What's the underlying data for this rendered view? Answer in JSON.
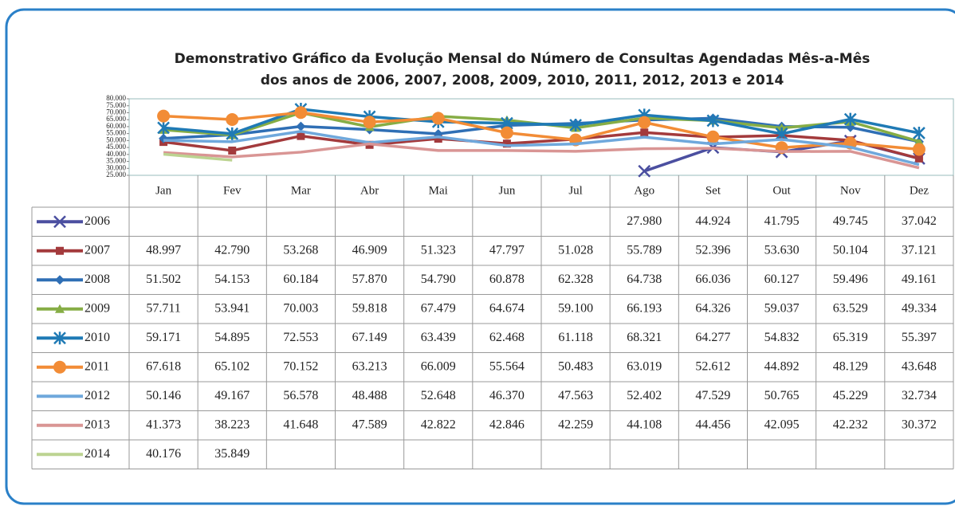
{
  "chart_data": {
    "type": "line",
    "title": "Demonstrativo Gráfico da Evolução Mensal do Número de Consultas Agendadas Mês-a-Mês",
    "subtitle": "dos anos de 2006, 2007, 2008, 2009, 2010, 2011, 2012, 2013 e 2014",
    "categories": [
      "Jan",
      "Fev",
      "Mar",
      "Abr",
      "Mai",
      "Jun",
      "Jul",
      "Ago",
      "Set",
      "Out",
      "Nov",
      "Dez"
    ],
    "ylim": [
      25000,
      80000
    ],
    "yticks": [
      {
        "value": 25000,
        "label": "25.000"
      },
      {
        "value": 30000,
        "label": "30.000"
      },
      {
        "value": 35000,
        "label": "35.000"
      },
      {
        "value": 40000,
        "label": "40.000"
      },
      {
        "value": 45000,
        "label": "45.000"
      },
      {
        "value": 50000,
        "label": "50.000"
      },
      {
        "value": 55000,
        "label": "55.000"
      },
      {
        "value": 60000,
        "label": "60.000"
      },
      {
        "value": 65000,
        "label": "65.000"
      },
      {
        "value": 70000,
        "label": "70.000"
      },
      {
        "value": 75000,
        "label": "75.000"
      },
      {
        "value": 80000,
        "label": "80.000"
      }
    ],
    "series": [
      {
        "name": "2006",
        "color": "#4b4fa0",
        "marker": "x",
        "values": [
          null,
          null,
          null,
          null,
          null,
          null,
          null,
          27980,
          44924,
          41795,
          49745,
          37042
        ],
        "value_labels": [
          null,
          null,
          null,
          null,
          null,
          null,
          null,
          "27.980",
          "44.924",
          "41.795",
          "49.745",
          "37.042"
        ]
      },
      {
        "name": "2007",
        "color": "#a33a3c",
        "marker": "square",
        "values": [
          48997,
          42790,
          53268,
          46909,
          51323,
          47797,
          51028,
          55789,
          52396,
          53630,
          50104,
          37121
        ],
        "value_labels": [
          "48.997",
          "42.790",
          "53.268",
          "46.909",
          "51.323",
          "47.797",
          "51.028",
          "55.789",
          "52.396",
          "53.630",
          "50.104",
          "37.121"
        ]
      },
      {
        "name": "2008",
        "color": "#2f6fb5",
        "marker": "diamond",
        "values": [
          51502,
          54153,
          60184,
          57870,
          54790,
          60878,
          62328,
          64738,
          66036,
          60127,
          59496,
          49161
        ],
        "value_labels": [
          "51.502",
          "54.153",
          "60.184",
          "57.870",
          "54.790",
          "60.878",
          "62.328",
          "64.738",
          "66.036",
          "60.127",
          "59.496",
          "49.161"
        ]
      },
      {
        "name": "2009",
        "color": "#86ad45",
        "marker": "triangle",
        "values": [
          57711,
          53941,
          70003,
          59818,
          67479,
          64674,
          59100,
          66193,
          64326,
          59037,
          63529,
          49334
        ],
        "value_labels": [
          "57.711",
          "53.941",
          "70.003",
          "59.818",
          "67.479",
          "64.674",
          "59.100",
          "66.193",
          "64.326",
          "59.037",
          "63.529",
          "49.334"
        ]
      },
      {
        "name": "2010",
        "color": "#1f7ab5",
        "marker": "star",
        "values": [
          59171,
          54895,
          72553,
          67149,
          63439,
          62468,
          61118,
          68321,
          64277,
          54832,
          65319,
          55397
        ],
        "value_labels": [
          "59.171",
          "54.895",
          "72.553",
          "67.149",
          "63.439",
          "62.468",
          "61.118",
          "68.321",
          "64.277",
          "54.832",
          "65.319",
          "55.397"
        ]
      },
      {
        "name": "2011",
        "color": "#f28c36",
        "marker": "circle",
        "values": [
          67618,
          65102,
          70152,
          63213,
          66009,
          55564,
          50483,
          63019,
          52612,
          44892,
          48129,
          43648
        ],
        "value_labels": [
          "67.618",
          "65.102",
          "70.152",
          "63.213",
          "66.009",
          "55.564",
          "50.483",
          "63.019",
          "52.612",
          "44.892",
          "48.129",
          "43.648"
        ]
      },
      {
        "name": "2012",
        "color": "#6fa8dc",
        "marker": "none",
        "values": [
          50146,
          49167,
          56578,
          48488,
          52648,
          46370,
          47563,
          52402,
          47529,
          50765,
          45229,
          32734
        ],
        "value_labels": [
          "50.146",
          "49.167",
          "56.578",
          "48.488",
          "52.648",
          "46.370",
          "47.563",
          "52.402",
          "47.529",
          "50.765",
          "45.229",
          "32.734"
        ]
      },
      {
        "name": "2013",
        "color": "#d99594",
        "marker": "none",
        "values": [
          41373,
          38223,
          41648,
          47589,
          42822,
          42846,
          42259,
          44108,
          44456,
          42095,
          42232,
          30372
        ],
        "value_labels": [
          "41.373",
          "38.223",
          "41.648",
          "47.589",
          "42.822",
          "42.846",
          "42.259",
          "44.108",
          "44.456",
          "42.095",
          "42.232",
          "30.372"
        ]
      },
      {
        "name": "2014",
        "color": "#bcd391",
        "marker": "none",
        "values": [
          40176,
          35849,
          null,
          null,
          null,
          null,
          null,
          null,
          null,
          null,
          null,
          null
        ],
        "value_labels": [
          "40.176",
          "35.849",
          null,
          null,
          null,
          null,
          null,
          null,
          null,
          null,
          null,
          null
        ]
      }
    ]
  }
}
